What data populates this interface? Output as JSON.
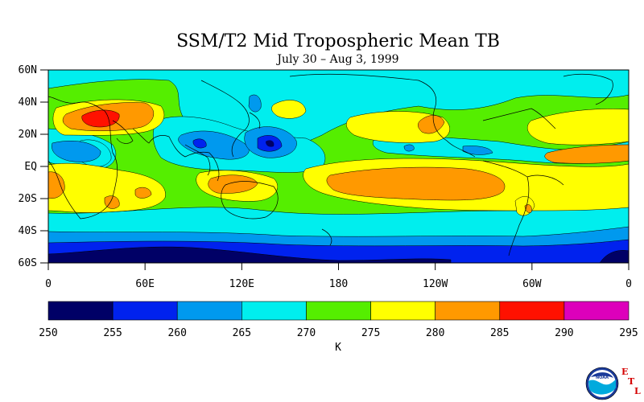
{
  "title": "SSM/T2 Mid Tropospheric Mean TB",
  "subtitle": "July 30 – Aug 3, 1999",
  "latitude_labels": [
    "60N",
    "40N",
    "20N",
    "EQ",
    "20S",
    "40S",
    "60S"
  ],
  "longitude_labels": [
    "0",
    "60E",
    "120E",
    "180",
    "120W",
    "60W",
    "0"
  ],
  "colorbar": {
    "ticks": [
      "250",
      "255",
      "260",
      "265",
      "270",
      "275",
      "280",
      "285",
      "290",
      "295"
    ],
    "unit": "K",
    "colors": [
      "#000066",
      "#0022ee",
      "#0099ee",
      "#00eeee",
      "#55ee00",
      "#ffff00",
      "#ff9900",
      "#ff1100",
      "#dd00bb"
    ]
  },
  "logo": {
    "text": "NOAA",
    "letters": [
      "E",
      "T",
      "L"
    ]
  },
  "map_data": {
    "type": "filled-contour",
    "variable": "Mid tropospheric mean brightness temperature",
    "unit": "K",
    "lat_range": [
      -60,
      60
    ],
    "lon_range": [
      0,
      360
    ],
    "levels": [
      250,
      255,
      260,
      265,
      270,
      275,
      280,
      285,
      290,
      295
    ]
  }
}
